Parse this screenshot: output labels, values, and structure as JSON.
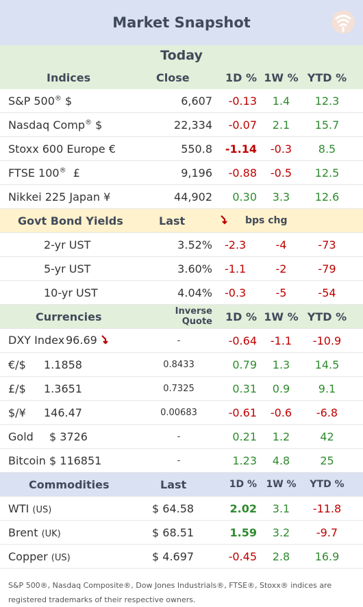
{
  "header": {
    "title": "Market Snapshot",
    "logo_icon": "brand-logo-icon"
  },
  "today_label": "Today",
  "indices": {
    "headers": {
      "name": "Indices",
      "close": "Close",
      "d1": "1D %",
      "w1": "1W %",
      "ytd": "YTD %"
    },
    "rows": [
      {
        "name": "S&P 500",
        "sup": "®",
        "suffix": " $",
        "close": "6,607",
        "d1": "-0.13",
        "w1": "1.4",
        "ytd": "12.3"
      },
      {
        "name": "Nasdaq Comp",
        "sup": "®",
        "suffix": " $",
        "close": "22,334",
        "d1": "-0.07",
        "w1": "2.1",
        "ytd": "15.7"
      },
      {
        "name": "Stoxx 600 Europe  €",
        "sup": "",
        "suffix": "",
        "close": "550.8",
        "d1": "-1.14",
        "w1": "-0.3",
        "ytd": "8.5"
      },
      {
        "name": "FTSE 100",
        "sup": "®",
        "suffix": "  £",
        "close": "9,196",
        "d1": "-0.88",
        "w1": "-0.5",
        "ytd": "12.5"
      },
      {
        "name": "Nikkei 225 Japan ¥",
        "sup": "",
        "suffix": "",
        "close": "44,902",
        "d1": "0.30",
        "w1": "3.3",
        "ytd": "12.6"
      }
    ]
  },
  "bonds": {
    "headers": {
      "name": "Govt Bond Yields",
      "last": "Last",
      "arrow_icon": "trend-down-arrow-icon",
      "bps": "bps chg"
    },
    "rows": [
      {
        "name": "2-yr UST",
        "last": "3.52%",
        "d1": "-2.3",
        "w1": "-4",
        "ytd": "-73"
      },
      {
        "name": "5-yr UST",
        "last": "3.60%",
        "d1": "-1.1",
        "w1": "-2",
        "ytd": "-79"
      },
      {
        "name": "10-yr UST",
        "last": "4.04%",
        "d1": "-0.3",
        "w1": "-5",
        "ytd": "-54"
      }
    ]
  },
  "currencies": {
    "headers": {
      "name": "Currencies",
      "inverse": "Inverse Quote",
      "d1": "1D %",
      "w1": "1W %",
      "ytd": "YTD %"
    },
    "rows": [
      {
        "name": "DXY Index",
        "value": "96.69",
        "inverse": "-",
        "d1": "-0.64",
        "w1": "-1.1",
        "ytd": "-10.9"
      },
      {
        "name": "€/$",
        "value": "1.1858",
        "inverse": "0.8433",
        "d1": "0.79",
        "w1": "1.3",
        "ytd": "14.5"
      },
      {
        "name": "£/$",
        "value": "1.3651",
        "inverse": "0.7325",
        "d1": "0.31",
        "w1": "0.9",
        "ytd": "9.1"
      },
      {
        "name": "$/¥",
        "value": "146.47",
        "inverse": "0.00683",
        "d1": "-0.61",
        "w1": "-0.6",
        "ytd": "-6.8"
      },
      {
        "name": "Gold",
        "value": "$ 3726",
        "inverse": "-",
        "d1": "0.21",
        "w1": "1.2",
        "ytd": "42"
      },
      {
        "name": "Bitcoin",
        "value": "$ 116851",
        "inverse": "-",
        "d1": "1.23",
        "w1": "4.8",
        "ytd": "25"
      }
    ]
  },
  "commodities": {
    "headers": {
      "name": "Commodities",
      "last": "Last",
      "d1": "1D %",
      "w1": "1W %",
      "ytd": "YTD %"
    },
    "rows": [
      {
        "name": "WTI",
        "region": "(US)",
        "last": "$ 64.58",
        "d1": "2.02",
        "w1": "3.1",
        "ytd": "-11.8"
      },
      {
        "name": "Brent",
        "region": "(UK)",
        "last": "$ 68.51",
        "d1": "1.59",
        "w1": "3.2",
        "ytd": "-9.7"
      },
      {
        "name": "Copper",
        "region": "(US)",
        "last": "$ 4.697",
        "d1": "-0.45",
        "w1": "2.8",
        "ytd": "16.9"
      }
    ]
  },
  "footer": "S&P 500®, Nasdaq Composite®, Dow Jones Industrials®, FTSE®, Stoxx® indices are registered trademarks of their respective owners.",
  "colors": {
    "negative": "#c00000",
    "positive": "#2e8b2e",
    "header_blue": "#d9e1f2",
    "header_green": "#e2efda",
    "header_peach": "#fff2cc"
  }
}
